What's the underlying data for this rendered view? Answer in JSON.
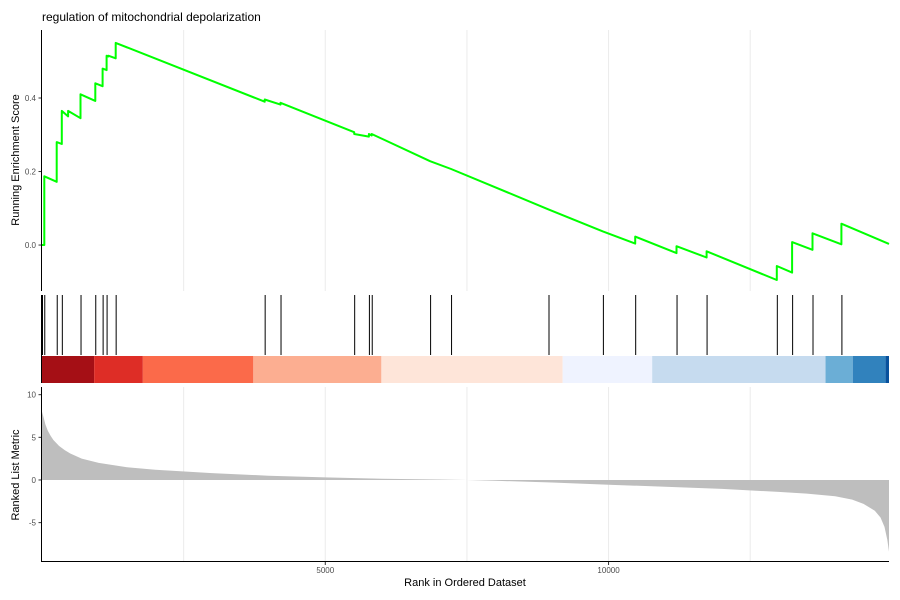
{
  "chart_data": {
    "type": "line",
    "title": "regulation of mitochondrial depolarization",
    "xlabel": "Rank in Ordered Dataset",
    "xlim": [
      0,
      14950
    ],
    "x_ticks": [
      5000,
      10000
    ],
    "x_tick_labels": [
      "5000",
      "10000"
    ],
    "grid_x": [
      2500,
      5000,
      7500,
      10000,
      12500
    ],
    "line_color": "#00ff00",
    "running_score": {
      "ylabel": "Running Enrichment Score",
      "ylim": [
        -0.125,
        0.585
      ],
      "y_ticks": [
        0.0,
        0.2,
        0.4
      ],
      "y_tick_labels": [
        "0.0",
        "0.2",
        "0.4"
      ],
      "x": [
        0,
        40,
        40,
        260,
        260,
        350,
        350,
        460,
        460,
        680,
        680,
        940,
        940,
        1070,
        1070,
        1140,
        1140,
        1170,
        1170,
        1300,
        1300,
        3930,
        3930,
        4210,
        4210,
        5510,
        5510,
        5770,
        5770,
        5820,
        5820,
        6850,
        6850,
        7220,
        7220,
        8940,
        8940,
        9900,
        9900,
        10470,
        10470,
        11200,
        11200,
        11730,
        11730,
        12970,
        12970,
        13240,
        13240,
        13600,
        13600,
        14110,
        14110,
        14950
      ],
      "y": [
        0.0,
        0.0,
        0.187,
        0.172,
        0.28,
        0.275,
        0.365,
        0.35,
        0.365,
        0.345,
        0.41,
        0.392,
        0.44,
        0.432,
        0.48,
        0.476,
        0.515,
        0.513,
        0.515,
        0.508,
        0.55,
        0.39,
        0.396,
        0.382,
        0.387,
        0.307,
        0.302,
        0.295,
        0.302,
        0.298,
        0.302,
        0.228,
        0.228,
        0.207,
        0.207,
        0.097,
        0.097,
        0.037,
        0.037,
        0.004,
        0.023,
        -0.022,
        -0.003,
        -0.034,
        -0.017,
        -0.095,
        -0.057,
        -0.075,
        0.008,
        -0.013,
        0.032,
        0.002,
        0.058,
        0.003
      ]
    },
    "hit_positions": [
      0,
      40,
      260,
      350,
      680,
      940,
      1070,
      1140,
      1300,
      3930,
      4210,
      5510,
      5770,
      5820,
      6850,
      7220,
      8940,
      9900,
      10470,
      11200,
      11730,
      12970,
      13240,
      13600,
      14110
    ],
    "color_bands": [
      {
        "from": 0,
        "to": 920,
        "color": "#a50f15"
      },
      {
        "from": 920,
        "to": 1780,
        "color": "#de2d26"
      },
      {
        "from": 1780,
        "to": 3730,
        "color": "#fb6a4a"
      },
      {
        "from": 3730,
        "to": 5990,
        "color": "#fcae91"
      },
      {
        "from": 5990,
        "to": 9190,
        "color": "#fee5d9"
      },
      {
        "from": 9190,
        "to": 10770,
        "color": "#eff3ff"
      },
      {
        "from": 10770,
        "to": 13830,
        "color": "#c6dbef"
      },
      {
        "from": 13830,
        "to": 14310,
        "color": "#6baed6"
      },
      {
        "from": 14310,
        "to": 14890,
        "color": "#3182bd"
      },
      {
        "from": 14890,
        "to": 14950,
        "color": "#08519c"
      }
    ],
    "ranked_metric": {
      "ylabel": "Ranked List Metric",
      "ylim": [
        -9.5,
        10.9
      ],
      "y_ticks": [
        -5,
        0,
        5,
        10
      ],
      "y_tick_labels": [
        "-5",
        "0",
        "5",
        "10"
      ],
      "fill_color": "#bebebe",
      "x": [
        0,
        30,
        60,
        100,
        150,
        200,
        300,
        400,
        500,
        700,
        1000,
        1500,
        2000,
        3000,
        4000,
        5000,
        6000,
        7000,
        7500,
        8000,
        9000,
        10000,
        11000,
        12000,
        13000,
        13500,
        14000,
        14300,
        14500,
        14700,
        14800,
        14870,
        14920,
        14950
      ],
      "values": [
        8.0,
        7.3,
        6.5,
        5.8,
        5.2,
        4.7,
        4.0,
        3.5,
        3.1,
        2.5,
        2.0,
        1.5,
        1.2,
        0.8,
        0.5,
        0.3,
        0.15,
        0.05,
        0.0,
        -0.1,
        -0.3,
        -0.55,
        -0.8,
        -1.05,
        -1.4,
        -1.6,
        -1.9,
        -2.3,
        -2.8,
        -3.6,
        -4.4,
        -5.5,
        -7.0,
        -8.4
      ]
    }
  }
}
